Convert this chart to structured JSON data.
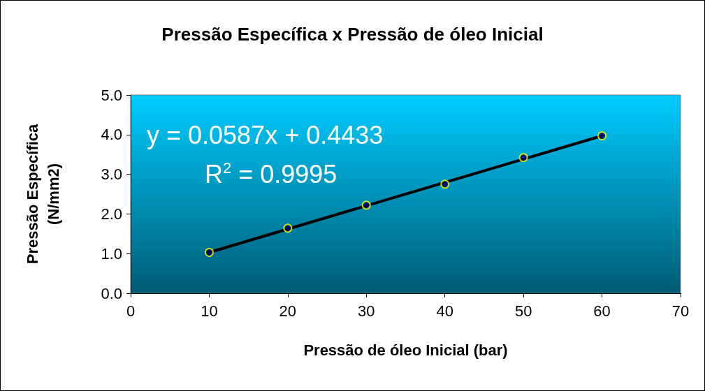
{
  "chart_data": {
    "type": "scatter",
    "title": "Pressão Específica x Pressão de óleo Inicial",
    "xlabel": "Pressão de óleo Inicial (bar)",
    "ylabel": "Pressão Específica\n(N/mm2)",
    "annotations": [
      "y = 0.0587x + 0.4433",
      "R$^{2}$ = 0.9995"
    ],
    "x": [
      10,
      20,
      30,
      40,
      50,
      60
    ],
    "series": [
      {
        "color": "#000066",
        "marker": "circle",
        "values": [
          1.03,
          1.64,
          2.22,
          2.75,
          3.42,
          3.97
        ]
      },
      {
        "type": "line",
        "color": "#000000",
        "marker": "none",
        "line_style": "solid",
        "x": [
          10,
          60
        ],
        "values": [
          1.03,
          3.97
        ]
      }
    ],
    "xlim": [
      0,
      70
    ],
    "xticks": [
      0,
      10,
      20,
      30,
      40,
      50,
      60,
      70
    ],
    "ylim": [
      0,
      5
    ],
    "yticks": [
      {
        "value": 0,
        "label": "0.0"
      },
      {
        "value": 1,
        "label": "1.0"
      },
      {
        "value": 2,
        "label": "2.0"
      },
      {
        "value": 3,
        "label": "3.0"
      },
      {
        "value": 4,
        "label": "4.0"
      },
      {
        "value": 5,
        "label": "5.0"
      }
    ],
    "grid": false
  }
}
